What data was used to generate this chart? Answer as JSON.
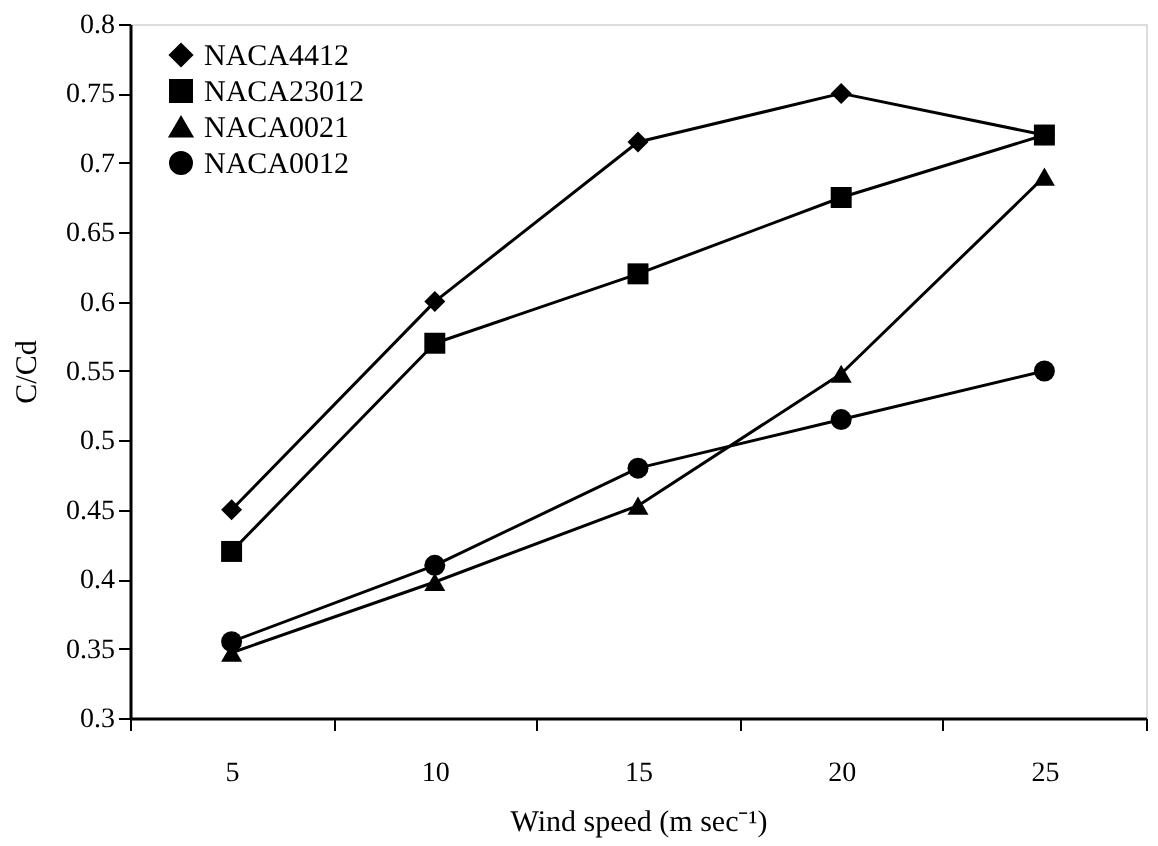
{
  "chart_data": {
    "type": "line",
    "xlabel": "Wind speed (m sec⁻¹)",
    "ylabel": "C/Cd",
    "categories": [
      "5",
      "10",
      "15",
      "20",
      "25"
    ],
    "series": [
      {
        "name": "NACA4412",
        "color": "#000000",
        "marker": "diamond",
        "values": [
          0.45,
          0.6,
          0.715,
          0.75,
          0.72
        ]
      },
      {
        "name": "NACA23012",
        "color": "#000000",
        "marker": "square",
        "values": [
          0.42,
          0.57,
          0.62,
          0.675,
          0.72
        ]
      },
      {
        "name": "NACA0021",
        "color": "#000000",
        "marker": "triangle",
        "values": [
          0.347,
          0.398,
          0.453,
          0.548,
          0.69
        ]
      },
      {
        "name": "NACA0012",
        "color": "#000000",
        "marker": "circle",
        "values": [
          0.355,
          0.41,
          0.48,
          0.515,
          0.55
        ]
      }
    ],
    "ylim": [
      0.3,
      0.8
    ],
    "yticks": [
      0.3,
      0.35,
      0.4,
      0.45,
      0.5,
      0.55,
      0.6,
      0.65,
      0.7,
      0.75,
      0.8
    ],
    "grid": false,
    "legend": "top left",
    "line_style": "solid"
  }
}
